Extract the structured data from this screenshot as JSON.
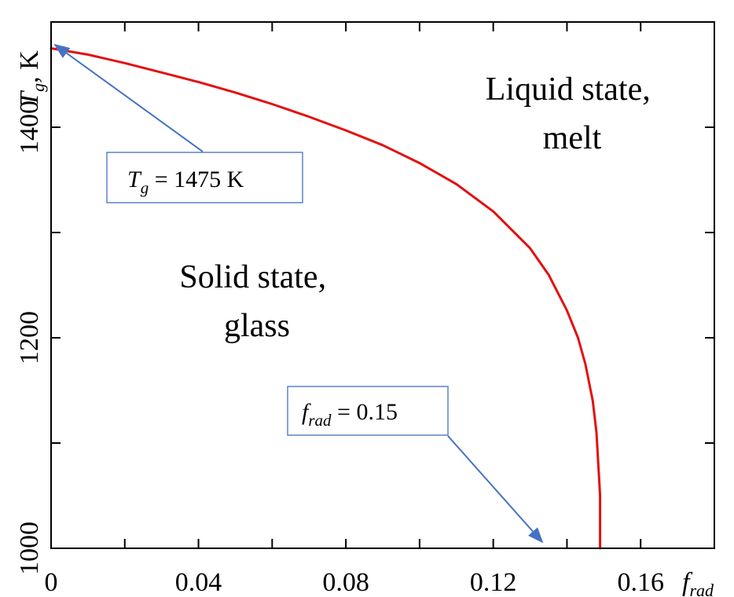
{
  "chart_data": {
    "type": "line",
    "title": "",
    "ylabel": "T_g, K",
    "ylabel_parts": {
      "symbol": "T",
      "sub": "g",
      "unit": ", K"
    },
    "xlabel_parts": {
      "symbol": "f",
      "sub": "rad"
    },
    "xlim": [
      0,
      0.18
    ],
    "ylim": [
      1000,
      1500
    ],
    "x_ticks": [
      0,
      0.04,
      0.08,
      0.12,
      0.16
    ],
    "x_tick_labels": [
      "0",
      "0.04",
      "0.08",
      "0.12",
      "0.16"
    ],
    "x_minor_ticks": [
      0.02,
      0.06,
      0.1,
      0.14
    ],
    "y_ticks": [
      1000,
      1200,
      1400
    ],
    "y_tick_labels": [
      "1000",
      "1200",
      "1400"
    ],
    "y_minor_ticks": [
      1100,
      1300
    ],
    "grid": false,
    "series": [
      {
        "color": "#e3100f",
        "x": [
          0,
          0.01,
          0.02,
          0.03,
          0.04,
          0.05,
          0.06,
          0.07,
          0.08,
          0.09,
          0.1,
          0.11,
          0.12,
          0.13,
          0.135,
          0.14,
          0.143,
          0.145,
          0.147,
          0.148,
          0.1485,
          0.149,
          0.149
        ],
        "y": [
          1475,
          1469,
          1461,
          1452,
          1443,
          1433,
          1422,
          1410,
          1397,
          1383,
          1366,
          1346,
          1320,
          1285,
          1260,
          1226,
          1200,
          1175,
          1140,
          1110,
          1080,
          1050,
          1000
        ]
      }
    ],
    "annotations": {
      "region_solid": [
        "Solid state,",
        "glass"
      ],
      "region_liquid": [
        "Liquid state,",
        "melt"
      ],
      "callout_tg": {
        "symbol": "T",
        "sub": "g",
        "text": " = 1475 K"
      },
      "callout_frad": {
        "symbol": "f",
        "sub": "rad",
        "text": " = 0.15"
      }
    }
  }
}
